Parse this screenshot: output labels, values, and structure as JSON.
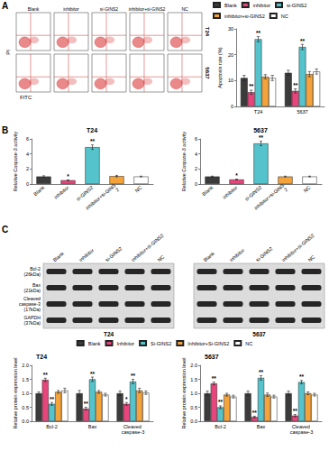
{
  "panel_labels": [
    "A",
    "B",
    "C"
  ],
  "flow_cytometry": {
    "groups": [
      "Blank",
      "inhibitor",
      "si-GINS2",
      "inhibitor+si-GINS2",
      "NC"
    ],
    "cell_lines": [
      "T24",
      "5637"
    ],
    "x_label": "FITC",
    "y_label": "PI"
  },
  "western_blot": {
    "lanes": [
      "Blank",
      "inhibitor",
      "si-GINS2",
      "inhibitor+si-GINS2",
      "NC"
    ],
    "proteins": [
      {
        "name": "Bcl-2",
        "size": "(26kDa)"
      },
      {
        "name": "Bax",
        "size": "(21kDa)"
      },
      {
        "name": "Cleaved caspase-3",
        "size": "(17kDa)"
      },
      {
        "name": "GAPDH",
        "size": "(37kDa)"
      }
    ],
    "cell_lines": [
      "T24",
      "5637"
    ]
  },
  "chart_data": [
    {
      "type": "bar",
      "y_label": "Apoptosis rate (%)",
      "categories": [
        "T24",
        "5637"
      ],
      "ylim": [
        0,
        30
      ],
      "yticks": [
        0,
        10,
        20,
        30
      ],
      "grid": false,
      "legend": "top",
      "series": [
        {
          "name": "Blank",
          "color": "#3b3b3b",
          "values": [
            11,
            13
          ],
          "errors": [
            1,
            1
          ],
          "significance": [
            null,
            null
          ]
        },
        {
          "name": "inhibitor",
          "color": "#e8457c",
          "values": [
            5.5,
            6
          ],
          "errors": [
            0.8,
            0.8
          ],
          "significance": [
            "**",
            "**"
          ]
        },
        {
          "name": "si-GINS2",
          "color": "#55c3cb",
          "values": [
            26,
            23
          ],
          "errors": [
            1,
            1
          ],
          "significance": [
            "**",
            "**"
          ]
        },
        {
          "name": "inhibitor+si-GINS2",
          "color": "#f3a33a",
          "values": [
            11.5,
            12.5
          ],
          "errors": [
            0.8,
            1
          ],
          "significance": [
            null,
            null
          ]
        },
        {
          "name": "NC",
          "color": "#ffffff",
          "values": [
            11,
            13.5
          ],
          "errors": [
            1,
            1
          ],
          "significance": [
            null,
            null
          ]
        }
      ]
    },
    {
      "type": "bar",
      "title": "T24",
      "y_label": "Relative Caspase-3 activity",
      "categories": [
        "Blank",
        "inhibitor",
        "si-GINS2",
        "inhibitor+si-GINS2",
        "NC"
      ],
      "colors": [
        "#3b3b3b",
        "#e8457c",
        "#55c3cb",
        "#f3a33a",
        "#ffffff"
      ],
      "values": [
        1,
        0.5,
        4.9,
        1.05,
        1
      ],
      "errors": [
        0.1,
        0.05,
        0.3,
        0.1,
        0.05
      ],
      "significance": [
        null,
        "*",
        "**",
        null,
        null
      ],
      "ylim": [
        0,
        6
      ],
      "yticks": [
        0,
        2,
        4,
        6
      ],
      "grid": false
    },
    {
      "type": "bar",
      "title": "5637",
      "y_label": "Relative Caspase-3 activity",
      "categories": [
        "Blank",
        "inhibitor",
        "si-GINS2",
        "inhibitor+si-GINS2",
        "NC"
      ],
      "colors": [
        "#3b3b3b",
        "#e8457c",
        "#55c3cb",
        "#f3a33a",
        "#ffffff"
      ],
      "values": [
        1,
        0.6,
        5.4,
        1,
        1
      ],
      "errors": [
        0.05,
        0.05,
        0.3,
        0.05,
        0.05
      ],
      "significance": [
        null,
        "*",
        "**",
        null,
        null
      ],
      "ylim": [
        0,
        6
      ],
      "yticks": [
        0,
        2,
        4,
        6
      ],
      "grid": false
    },
    {
      "type": "bar",
      "title": "T24",
      "y_label": "Relative protein expression level",
      "categories": [
        "Bcl-2",
        "Bax",
        "Cleaved caspase-3"
      ],
      "ylim": [
        0,
        2
      ],
      "yticks": [
        {
          "value": 0,
          "label": "0.0"
        },
        {
          "value": 0.5,
          "label": "0.5"
        },
        {
          "value": 1,
          "label": "1.0"
        },
        {
          "value": 1.5,
          "label": "1.5"
        },
        {
          "value": 2,
          "label": "2.0"
        }
      ],
      "grid": false,
      "legend": "top",
      "series": [
        {
          "name": "Blank",
          "color": "#3b3b3b",
          "values": [
            1,
            1,
            1
          ],
          "errors": [
            0.05,
            0.1,
            0.08
          ],
          "significance": [
            null,
            null,
            null
          ]
        },
        {
          "name": "Inhibitor",
          "color": "#e8457c",
          "values": [
            1.48,
            0.45,
            0.62
          ],
          "errors": [
            0.06,
            0.05,
            0.05
          ],
          "significance": [
            "**",
            "**",
            "*"
          ]
        },
        {
          "name": "Si-GINS2",
          "color": "#55c3cb",
          "values": [
            0.62,
            1.5,
            1.42
          ],
          "errors": [
            0.05,
            0.08,
            0.08
          ],
          "significance": [
            "**",
            "**",
            "**"
          ]
        },
        {
          "name": "Inhibitor+Si-GINS2",
          "color": "#f3a33a",
          "values": [
            1.05,
            1.05,
            1.1
          ],
          "errors": [
            0.05,
            0.05,
            0.08
          ],
          "significance": [
            null,
            null,
            null
          ]
        },
        {
          "name": "NC",
          "color": "#ffffff",
          "values": [
            1.1,
            0.95,
            1.02
          ],
          "errors": [
            0.08,
            0.05,
            0.06
          ],
          "significance": [
            null,
            null,
            null
          ]
        }
      ]
    },
    {
      "type": "bar",
      "title": "5637",
      "y_label": "Relative protein expression level",
      "categories": [
        "Bcl-2",
        "Bax",
        "Cleaved caspase-3"
      ],
      "ylim": [
        0,
        2
      ],
      "yticks": [
        {
          "value": 0,
          "label": "0.0"
        },
        {
          "value": 0.5,
          "label": "0.5"
        },
        {
          "value": 1,
          "label": "1.0"
        },
        {
          "value": 1.5,
          "label": "1.5"
        },
        {
          "value": 2,
          "label": "2.0"
        }
      ],
      "grid": false,
      "series": [
        {
          "name": "Blank",
          "color": "#3b3b3b",
          "values": [
            1,
            1,
            1
          ],
          "errors": [
            0.08,
            0.08,
            0.08
          ],
          "significance": [
            null,
            null,
            null
          ]
        },
        {
          "name": "Inhibitor",
          "color": "#e8457c",
          "values": [
            1.35,
            0.15,
            0.2
          ],
          "errors": [
            0.05,
            0.03,
            0.04
          ],
          "significance": [
            "**",
            "**",
            "**"
          ]
        },
        {
          "name": "Si-GINS2",
          "color": "#55c3cb",
          "values": [
            0.5,
            1.55,
            1.4
          ],
          "errors": [
            0.05,
            0.08,
            0.06
          ],
          "significance": [
            "**",
            "**",
            "**"
          ]
        },
        {
          "name": "Inhibitor+Si-GINS2",
          "color": "#f3a33a",
          "values": [
            0.95,
            0.95,
            1
          ],
          "errors": [
            0.05,
            0.06,
            0.05
          ],
          "significance": [
            null,
            null,
            null
          ]
        },
        {
          "name": "NC",
          "color": "#ffffff",
          "values": [
            0.88,
            0.88,
            0.95
          ],
          "errors": [
            0.05,
            0.05,
            0.05
          ],
          "significance": [
            null,
            null,
            null
          ]
        }
      ]
    }
  ]
}
